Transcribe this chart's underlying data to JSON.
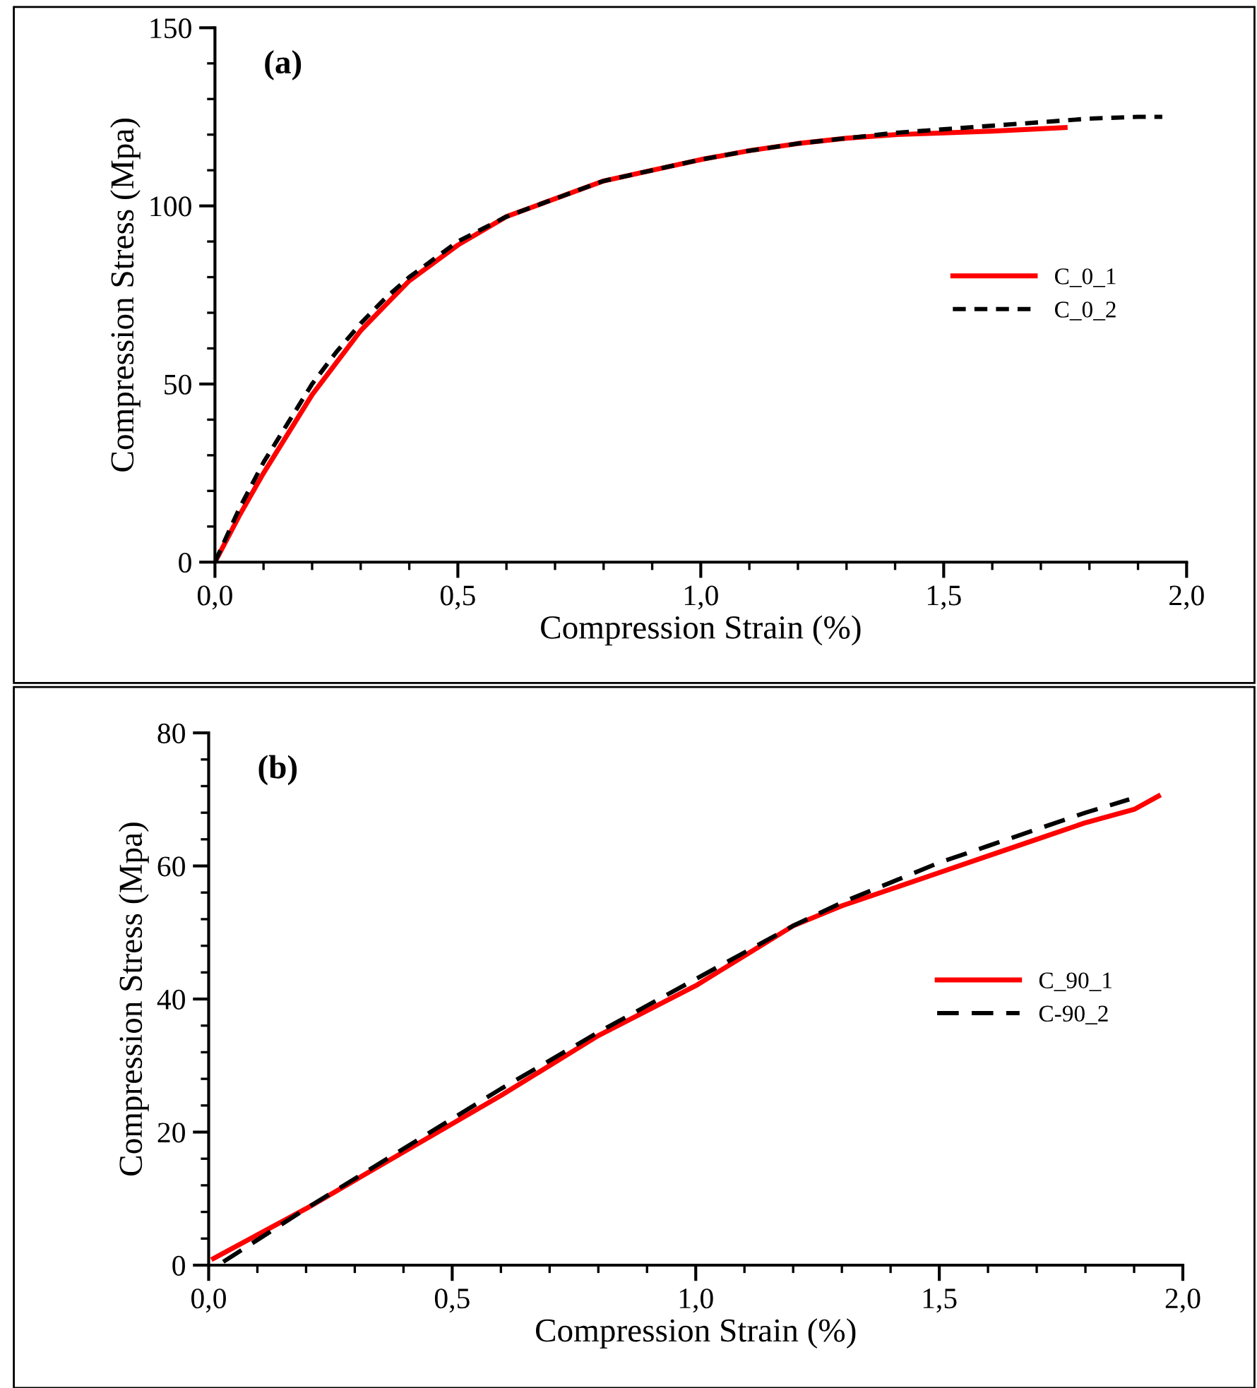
{
  "chart_data": [
    {
      "type": "line",
      "xlabel": "Compression Strain (%)",
      "ylabel": "Compression Stress (Mpa)",
      "annotations": [
        "(a)"
      ],
      "xlim": [
        0,
        2
      ],
      "xticks": [
        {
          "value": 0,
          "label": "0,0"
        },
        {
          "value": 0.5,
          "label": "0,5"
        },
        {
          "value": 1.0,
          "label": "1,0"
        },
        {
          "value": 1.5,
          "label": "1,5"
        },
        {
          "value": 2.0,
          "label": "2,0"
        }
      ],
      "ylim": [
        0,
        150
      ],
      "yticks": [
        0,
        50,
        100,
        150
      ],
      "grid": false,
      "legend": "right",
      "marker": "none",
      "series": [
        {
          "name": "C_0_1",
          "color": "#ff0000",
          "line_style": "solid",
          "x": [
            0,
            0.05,
            0.1,
            0.15,
            0.2,
            0.25,
            0.3,
            0.35,
            0.4,
            0.5,
            0.6,
            0.7,
            0.8,
            0.9,
            1.0,
            1.1,
            1.2,
            1.3,
            1.4,
            1.5,
            1.6,
            1.75
          ],
          "values": [
            0,
            13,
            25,
            36,
            47,
            56,
            65,
            72,
            79,
            89,
            97,
            102,
            107,
            110,
            113,
            115.5,
            117.5,
            119,
            120,
            120.5,
            121,
            122
          ]
        },
        {
          "name": "C_0_2",
          "color": "#000000",
          "line_style": "dashed",
          "x": [
            0,
            0.05,
            0.1,
            0.15,
            0.2,
            0.25,
            0.3,
            0.35,
            0.4,
            0.5,
            0.6,
            0.7,
            0.8,
            0.9,
            1.0,
            1.1,
            1.2,
            1.3,
            1.4,
            1.5,
            1.6,
            1.7,
            1.8,
            1.9,
            1.95
          ],
          "values": [
            0,
            15,
            28,
            39,
            50,
            59,
            67,
            74,
            80,
            90,
            97,
            102,
            107,
            110,
            113,
            115.5,
            117.5,
            119,
            120.5,
            121.5,
            122.5,
            123.5,
            124.5,
            125,
            125
          ]
        }
      ]
    },
    {
      "type": "line",
      "xlabel": "Compression Strain (%)",
      "ylabel": "Compression Stress (Mpa)",
      "annotations": [
        "(b)"
      ],
      "xlim": [
        0,
        2
      ],
      "xticks": [
        {
          "value": 0,
          "label": "0,0"
        },
        {
          "value": 0.5,
          "label": "0,5"
        },
        {
          "value": 1.0,
          "label": "1,0"
        },
        {
          "value": 1.5,
          "label": "1,5"
        },
        {
          "value": 2.0,
          "label": "2,0"
        }
      ],
      "ylim": [
        0,
        80
      ],
      "yticks": [
        0,
        20,
        40,
        60,
        80
      ],
      "grid": false,
      "legend": "right",
      "marker": "none",
      "series": [
        {
          "name": "C_90_1",
          "color": "#ff0000",
          "line_style": "solid",
          "x": [
            0.01,
            0.2,
            0.4,
            0.6,
            0.8,
            1.0,
            1.1,
            1.2,
            1.3,
            1.4,
            1.5,
            1.6,
            1.7,
            1.8,
            1.9,
            1.95
          ],
          "values": [
            1,
            8.5,
            17,
            25.5,
            34.5,
            42,
            46.5,
            51,
            54,
            56.5,
            59,
            61.5,
            64,
            66.5,
            68.5,
            70.5
          ]
        },
        {
          "name": "C-90_2",
          "color": "#000000",
          "line_style": "dashed",
          "x": [
            0.03,
            0.2,
            0.4,
            0.6,
            0.8,
            1.0,
            1.2,
            1.3,
            1.4,
            1.5,
            1.6,
            1.7,
            1.8,
            1.89
          ],
          "values": [
            0.5,
            8.5,
            17.5,
            26.5,
            35,
            43,
            51,
            54.5,
            57.5,
            60.5,
            63,
            65.5,
            68,
            70
          ]
        }
      ]
    }
  ]
}
